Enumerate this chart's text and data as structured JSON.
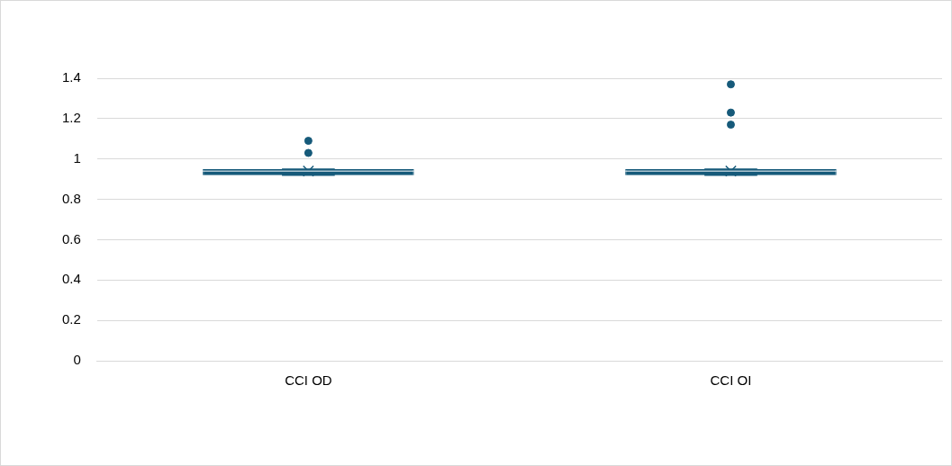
{
  "chart_data": {
    "type": "box",
    "categories": [
      "CCI OD",
      "CCI OI"
    ],
    "color": "#165a7a",
    "boxes": [
      {
        "low": 0.92,
        "q1": 0.92,
        "median": 0.94,
        "q3": 0.95,
        "high": 0.95,
        "mean": 0.94,
        "outliers": [
          1.09,
          1.03
        ]
      },
      {
        "low": 0.92,
        "q1": 0.92,
        "median": 0.94,
        "q3": 0.95,
        "high": 0.95,
        "mean": 0.94,
        "outliers": [
          1.37,
          1.23,
          1.17
        ]
      }
    ],
    "ylim": [
      0,
      1.4
    ],
    "yticks": [
      0,
      0.2,
      0.4,
      0.6,
      0.8,
      1,
      1.2,
      1.4
    ],
    "grid": "y",
    "legend": false
  }
}
